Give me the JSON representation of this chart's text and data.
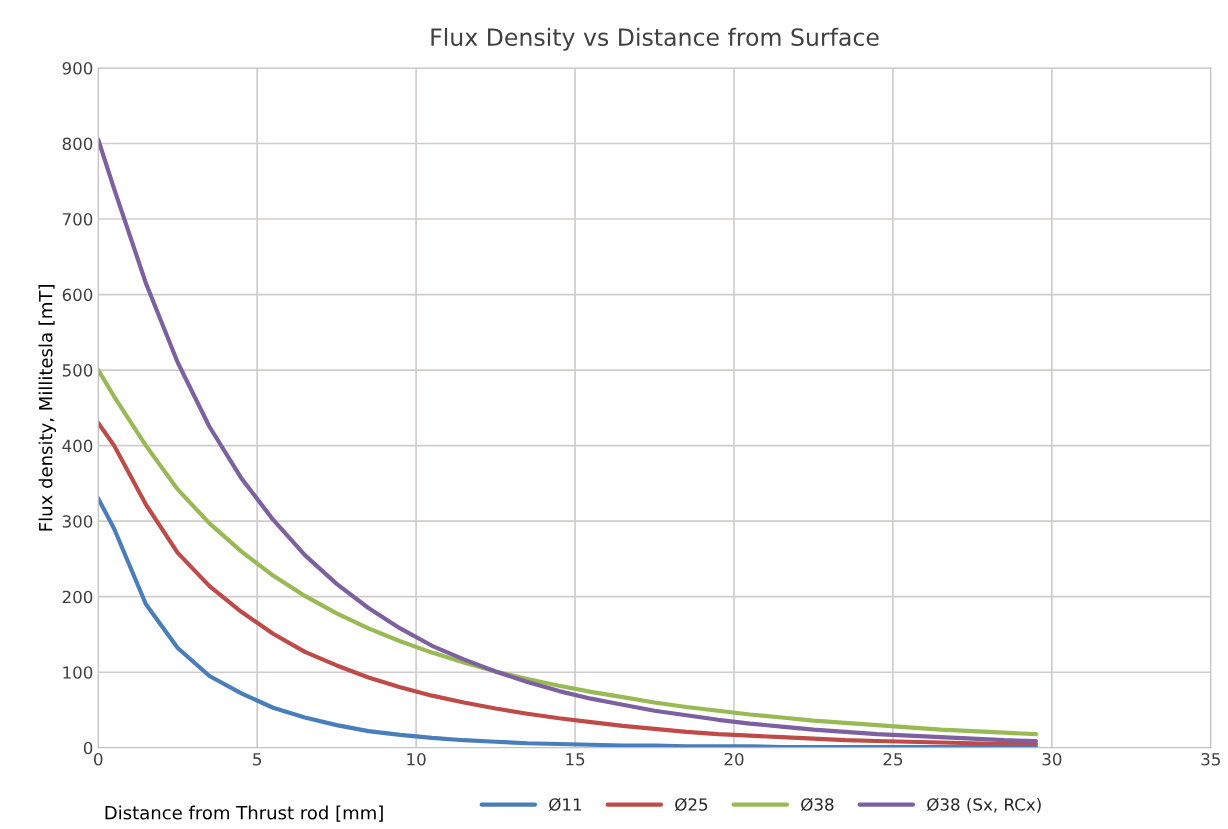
{
  "chart_data": {
    "type": "line",
    "title": "Flux Density vs Distance from Surface",
    "xlabel": "Distance from Thrust rod [mm]",
    "ylabel": "Flux density, Millitesla [mT]",
    "x": [
      0,
      0.5,
      1.5,
      2.5,
      3.5,
      4.5,
      5.5,
      6.5,
      7.5,
      8.5,
      9.5,
      10.5,
      11.5,
      12.5,
      13.5,
      14.5,
      15.5,
      16.5,
      17.5,
      18.5,
      19.5,
      20.5,
      21.5,
      22.5,
      23.5,
      24.5,
      25.5,
      26.5,
      27.5,
      28.5,
      29.5
    ],
    "series": [
      {
        "name": "Ø11",
        "color": "#4a7ebb",
        "values": [
          330,
          290,
          190,
          132,
          95,
          72,
          53,
          40,
          30,
          22,
          17,
          13,
          10,
          8,
          6,
          5,
          4,
          3,
          3,
          2,
          2,
          2,
          1,
          1,
          1,
          1,
          1,
          1,
          1,
          1,
          1
        ]
      },
      {
        "name": "Ø25",
        "color": "#be4b48",
        "values": [
          430,
          400,
          322,
          258,
          214,
          180,
          151,
          127,
          109,
          93,
          80,
          69,
          60,
          52,
          45,
          39,
          34,
          29,
          25,
          21,
          18,
          16,
          14,
          12,
          10,
          9,
          8,
          7,
          6,
          5,
          5
        ]
      },
      {
        "name": "Ø38",
        "color": "#98b954",
        "values": [
          500,
          465,
          400,
          342,
          297,
          260,
          228,
          201,
          178,
          158,
          141,
          126,
          113,
          101,
          91,
          82,
          74,
          67,
          60,
          54,
          49,
          44,
          40,
          36,
          33,
          30,
          27,
          24,
          22,
          20,
          18
        ]
      },
      {
        "name": "Ø38 (Sx, RCx)",
        "color": "#7d60a0",
        "values": [
          805,
          740,
          615,
          510,
          425,
          357,
          302,
          255,
          217,
          185,
          158,
          135,
          117,
          101,
          87,
          75,
          65,
          57,
          49,
          43,
          37,
          32,
          28,
          24,
          21,
          18,
          16,
          14,
          12,
          10,
          9
        ]
      }
    ],
    "xlim": [
      0,
      35
    ],
    "xticks": [
      0,
      5,
      10,
      15,
      20,
      25,
      30,
      35
    ],
    "ylim": [
      0,
      900
    ],
    "yticks": [
      0,
      100,
      200,
      300,
      400,
      500,
      600,
      700,
      800,
      900
    ],
    "grid": true,
    "legend": "bottom",
    "marker": "none",
    "line_style": "solid"
  }
}
